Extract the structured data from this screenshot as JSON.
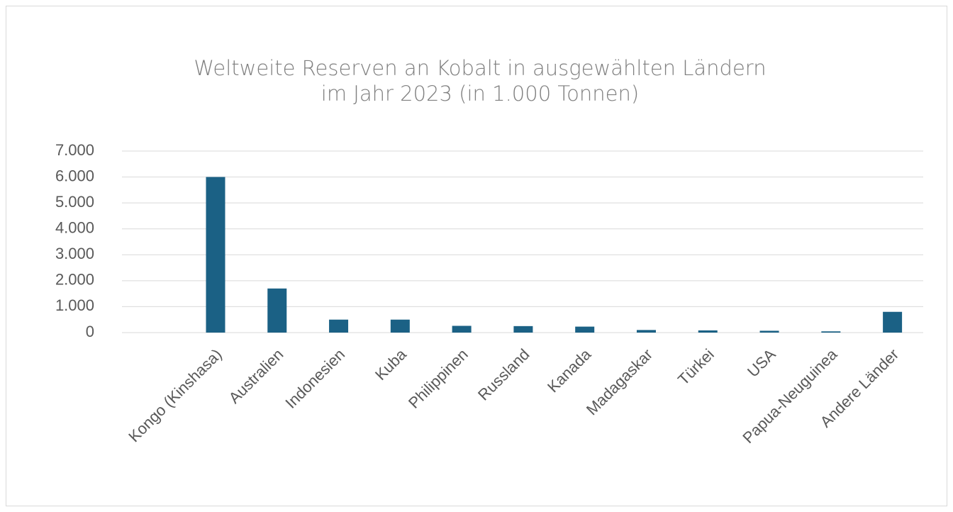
{
  "chart_data": {
    "type": "bar",
    "title": "Weltweite Reserven an Kobalt in ausgewählten Ländern im Jahr 2023 (in 1.000 Tonnen)",
    "categories": [
      "Kongo (Kinshasa)",
      "Australien",
      "Indonesien",
      "Kuba",
      "Philippinen",
      "Russland",
      "Kanada",
      "Madagaskar",
      "Türkei",
      "USA",
      "Papua-Neuguinea",
      "Andere Länder"
    ],
    "values": [
      6000,
      1700,
      500,
      500,
      260,
      250,
      230,
      100,
      85,
      70,
      47,
      800
    ],
    "color": "#1b6185",
    "ylim": [
      0,
      7000
    ],
    "yticks": [
      0,
      {
        "value": 1000,
        "label": "1.000"
      },
      {
        "value": 2000,
        "label": "2.000"
      },
      {
        "value": 3000,
        "label": "3.000"
      },
      {
        "value": 4000,
        "label": "4.000"
      },
      {
        "value": 5000,
        "label": "5.000"
      },
      {
        "value": 6000,
        "label": "6.000"
      },
      {
        "value": 7000,
        "label": "7.000"
      }
    ],
    "grid": true
  }
}
